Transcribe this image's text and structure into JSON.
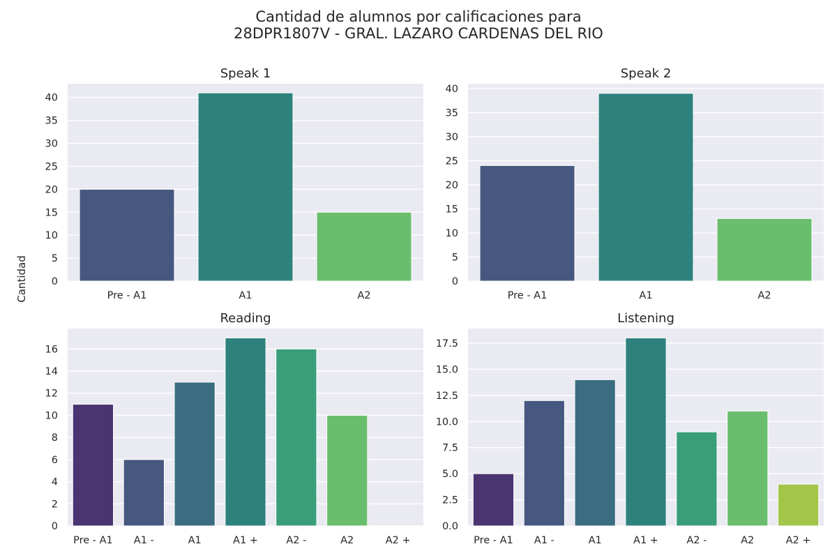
{
  "figure": {
    "title_line1": "Cantidad de alumnos por calificaciones para",
    "title_line2": "28DPR1807V - GRAL. LAZARO CARDENAS DEL RIO",
    "ylabel": "Cantidad",
    "background": "#eaeaf2",
    "grid": true
  },
  "chart_data": [
    {
      "type": "bar",
      "title": "Speak 1",
      "categories": [
        "Pre - A1",
        "A1",
        "A2"
      ],
      "values": [
        20,
        41,
        15
      ],
      "colors": [
        "#46587f",
        "#2e827d",
        "#6abd6c"
      ],
      "ylim": [
        0,
        43
      ],
      "yticks": [
        0,
        5,
        10,
        15,
        20,
        25,
        30,
        35,
        40
      ],
      "ytick_labels": [
        "0",
        "5",
        "10",
        "15",
        "20",
        "25",
        "30",
        "35",
        "40"
      ]
    },
    {
      "type": "bar",
      "title": "Speak 2",
      "categories": [
        "Pre - A1",
        "A1",
        "A2"
      ],
      "values": [
        24,
        39,
        13
      ],
      "colors": [
        "#46587f",
        "#2e827d",
        "#6abd6c"
      ],
      "ylim": [
        0,
        41
      ],
      "yticks": [
        0,
        5,
        10,
        15,
        20,
        25,
        30,
        35,
        40
      ],
      "ytick_labels": [
        "0",
        "5",
        "10",
        "15",
        "20",
        "25",
        "30",
        "35",
        "40"
      ]
    },
    {
      "type": "bar",
      "title": "Reading",
      "categories": [
        "Pre - A1",
        "A1 -",
        "A1",
        "A1 +",
        "A2 -",
        "A2",
        "A2 +"
      ],
      "values": [
        11,
        6,
        13,
        17,
        16,
        10,
        0
      ],
      "colors": [
        "#4a3472",
        "#46587f",
        "#3a6d80",
        "#2e827d",
        "#3b9e7b",
        "#6abd6c",
        "#a2c54a"
      ],
      "ylim": [
        0,
        17.85
      ],
      "yticks": [
        0,
        2,
        4,
        6,
        8,
        10,
        12,
        14,
        16
      ],
      "ytick_labels": [
        "0",
        "2",
        "4",
        "6",
        "8",
        "10",
        "12",
        "14",
        "16"
      ]
    },
    {
      "type": "bar",
      "title": "Listening",
      "categories": [
        "Pre - A1",
        "A1 -",
        "A1",
        "A1 +",
        "A2 -",
        "A2",
        "A2 +"
      ],
      "values": [
        5,
        12,
        14,
        18,
        9,
        11,
        4
      ],
      "colors": [
        "#4a3472",
        "#46587f",
        "#3a6d80",
        "#2e827d",
        "#3b9e7b",
        "#6abd6c",
        "#a2c54a"
      ],
      "ylim": [
        0,
        18.9
      ],
      "yticks": [
        0,
        2.5,
        5,
        7.5,
        10,
        12.5,
        15,
        17.5
      ],
      "ytick_labels": [
        "0.0",
        "2.5",
        "5.0",
        "7.5",
        "10.0",
        "12.5",
        "15.0",
        "17.5"
      ]
    }
  ]
}
